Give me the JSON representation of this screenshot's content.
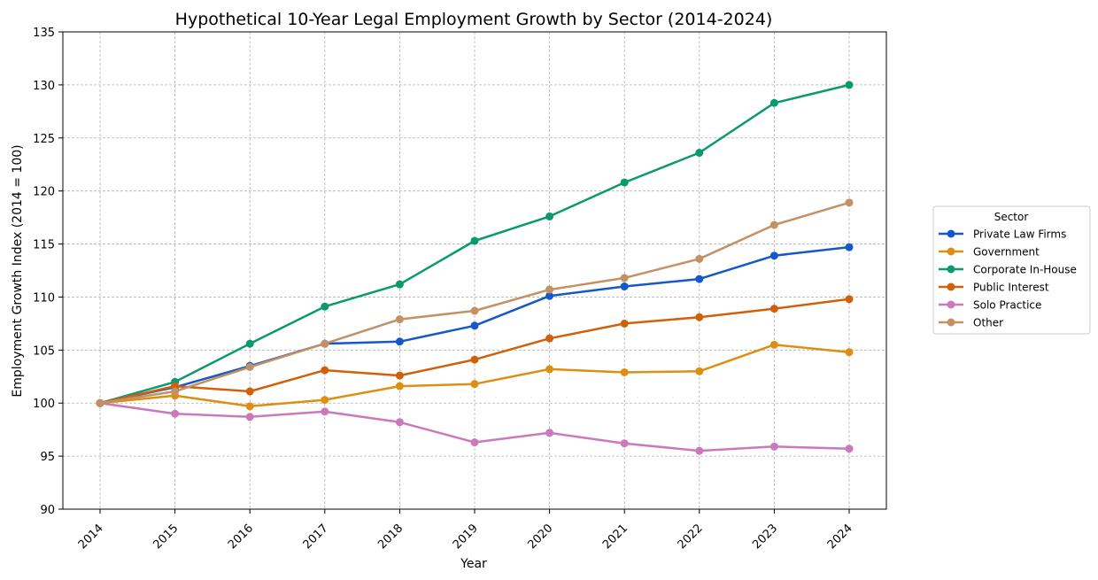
{
  "chart_data": {
    "type": "line",
    "title": "Hypothetical 10-Year Legal Employment Growth by Sector (2014-2024)",
    "xlabel": "Year",
    "ylabel": "Employment Growth Index (2014 = 100)",
    "categories": [
      "2014",
      "2015",
      "2016",
      "2017",
      "2018",
      "2019",
      "2020",
      "2021",
      "2022",
      "2023",
      "2024"
    ],
    "ylim": [
      90,
      135
    ],
    "yticks": [
      90,
      95,
      100,
      105,
      110,
      115,
      120,
      125,
      130,
      135
    ],
    "grid": true,
    "legend": {
      "title": "Sector",
      "placement": "outside-right"
    },
    "series": [
      {
        "name": "Private Law Firms",
        "color": "#1558c8",
        "values": [
          100,
          101.5,
          103.5,
          105.6,
          105.8,
          107.3,
          110.1,
          111.0,
          111.7,
          113.9,
          114.7
        ]
      },
      {
        "name": "Government",
        "color": "#dd8f12",
        "values": [
          100,
          100.7,
          99.7,
          100.3,
          101.6,
          101.8,
          103.2,
          102.9,
          103.0,
          105.5,
          104.8
        ]
      },
      {
        "name": "Corporate In-House",
        "color": "#0b9a6e",
        "values": [
          100,
          102.0,
          105.6,
          109.1,
          111.2,
          115.3,
          117.6,
          120.8,
          123.6,
          128.3,
          130.0
        ]
      },
      {
        "name": "Public Interest",
        "color": "#d1600b",
        "values": [
          100,
          101.6,
          101.1,
          103.1,
          102.6,
          104.1,
          106.1,
          107.5,
          108.1,
          108.9,
          109.8
        ]
      },
      {
        "name": "Solo Practice",
        "color": "#cc78bc",
        "values": [
          100,
          99.0,
          98.7,
          99.2,
          98.2,
          96.3,
          97.2,
          96.2,
          95.5,
          95.9,
          95.7
        ]
      },
      {
        "name": "Other",
        "color": "#c39163",
        "values": [
          100,
          101.1,
          103.4,
          105.6,
          107.9,
          108.7,
          110.7,
          111.8,
          113.6,
          116.8,
          118.9
        ]
      }
    ]
  }
}
